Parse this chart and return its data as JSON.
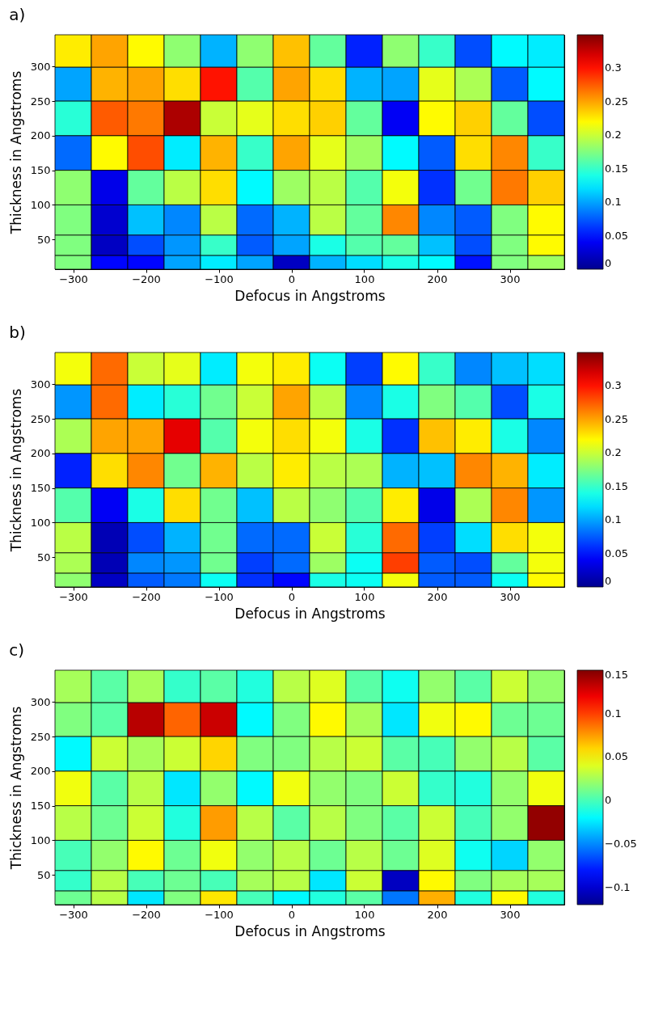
{
  "chart_data": [
    {
      "type": "heatmap",
      "title": "a)",
      "xlabel": "Defocus in Angstroms",
      "ylabel": "Thickness in Angstroms",
      "x": [
        -300,
        -250,
        -200,
        -150,
        -100,
        -50,
        0,
        50,
        100,
        150,
        200,
        250,
        300,
        350
      ],
      "y": [
        323,
        275,
        225,
        175,
        125,
        75,
        37.5,
        16
      ],
      "xlim": [
        -325,
        375
      ],
      "ylim": [
        7,
        346
      ],
      "xticks": [
        {
          "value": -300,
          "label": "−300"
        },
        {
          "value": -200,
          "label": "−200"
        },
        {
          "value": -100,
          "label": "−100"
        },
        0,
        100,
        200,
        300
      ],
      "yticks": [
        50,
        100,
        150,
        200,
        250,
        300
      ],
      "clim": [
        0,
        0.35
      ],
      "cticks": [
        0,
        0.05,
        0.1,
        0.15,
        0.2,
        0.25,
        0.3
      ],
      "cells": [
        [
          0.225,
          0.25,
          0.22,
          0.18,
          0.105,
          0.18,
          0.24,
          0.165,
          0.055,
          0.18,
          0.15,
          0.07,
          0.13,
          0.125
        ],
        [
          0.1,
          0.245,
          0.25,
          0.23,
          0.3,
          0.16,
          0.25,
          0.23,
          0.105,
          0.1,
          0.21,
          0.19,
          0.075,
          0.13
        ],
        [
          0.145,
          0.275,
          0.265,
          0.335,
          0.2,
          0.21,
          0.23,
          0.235,
          0.165,
          0.04,
          0.22,
          0.235,
          0.165,
          0.07
        ],
        [
          0.08,
          0.22,
          0.28,
          0.125,
          0.245,
          0.15,
          0.25,
          0.21,
          0.185,
          0.13,
          0.075,
          0.23,
          0.26,
          0.15
        ],
        [
          0.18,
          0.035,
          0.165,
          0.195,
          0.23,
          0.13,
          0.185,
          0.195,
          0.16,
          0.215,
          0.06,
          0.17,
          0.265,
          0.235
        ],
        [
          0.175,
          0.025,
          0.11,
          0.09,
          0.195,
          0.08,
          0.105,
          0.195,
          0.165,
          0.26,
          0.09,
          0.075,
          0.175,
          0.22
        ],
        [
          0.175,
          0.02,
          0.07,
          0.095,
          0.15,
          0.075,
          0.1,
          0.14,
          0.16,
          0.165,
          0.11,
          0.07,
          0.175,
          0.22
        ],
        [
          0.175,
          0.045,
          0.045,
          0.1,
          0.125,
          0.1,
          0.02,
          0.105,
          0.12,
          0.14,
          0.13,
          0.05,
          0.175,
          0.185
        ]
      ]
    },
    {
      "type": "heatmap",
      "title": "b)",
      "xlabel": "Defocus in Angstroms",
      "ylabel": "Thickness in Angstroms",
      "x": [
        -300,
        -250,
        -200,
        -150,
        -100,
        -50,
        0,
        50,
        100,
        150,
        200,
        250,
        300,
        350
      ],
      "y": [
        323,
        275,
        225,
        175,
        125,
        75,
        37.5,
        16
      ],
      "xlim": [
        -325,
        375
      ],
      "ylim": [
        7,
        346
      ],
      "xticks": [
        {
          "value": -300,
          "label": "−300"
        },
        {
          "value": -200,
          "label": "−200"
        },
        {
          "value": -100,
          "label": "−100"
        },
        0,
        100,
        200,
        300
      ],
      "yticks": [
        50,
        100,
        150,
        200,
        250,
        300
      ],
      "clim": [
        0,
        0.35
      ],
      "cticks": [
        0,
        0.05,
        0.1,
        0.15,
        0.2,
        0.25,
        0.3
      ],
      "cells": [
        [
          0.215,
          0.27,
          0.2,
          0.21,
          0.125,
          0.215,
          0.225,
          0.135,
          0.065,
          0.22,
          0.15,
          0.09,
          0.11,
          0.12
        ],
        [
          0.095,
          0.27,
          0.125,
          0.145,
          0.17,
          0.2,
          0.25,
          0.195,
          0.09,
          0.14,
          0.175,
          0.16,
          0.07,
          0.14
        ],
        [
          0.19,
          0.25,
          0.25,
          0.315,
          0.16,
          0.215,
          0.23,
          0.215,
          0.14,
          0.06,
          0.24,
          0.225,
          0.14,
          0.09
        ],
        [
          0.055,
          0.23,
          0.26,
          0.17,
          0.245,
          0.195,
          0.225,
          0.195,
          0.19,
          0.105,
          0.11,
          0.26,
          0.245,
          0.125
        ],
        [
          0.16,
          0.04,
          0.14,
          0.23,
          0.17,
          0.11,
          0.195,
          0.18,
          0.16,
          0.225,
          0.035,
          0.19,
          0.26,
          0.095
        ],
        [
          0.195,
          0.015,
          0.07,
          0.105,
          0.17,
          0.08,
          0.08,
          0.2,
          0.145,
          0.27,
          0.065,
          0.12,
          0.23,
          0.215
        ],
        [
          0.19,
          0.015,
          0.09,
          0.095,
          0.17,
          0.065,
          0.08,
          0.185,
          0.135,
          0.285,
          0.075,
          0.07,
          0.165,
          0.215
        ],
        [
          0.18,
          0.02,
          0.075,
          0.085,
          0.135,
          0.06,
          0.045,
          0.14,
          0.135,
          0.215,
          0.075,
          0.075,
          0.135,
          0.22
        ]
      ]
    },
    {
      "type": "heatmap",
      "title": "c)",
      "xlabel": "Defocus in Angstroms",
      "ylabel": "Thickness in Angstroms",
      "x": [
        -300,
        -250,
        -200,
        -150,
        -100,
        -50,
        0,
        50,
        100,
        150,
        200,
        250,
        300,
        350
      ],
      "y": [
        323,
        275,
        225,
        175,
        125,
        75,
        37.5,
        16
      ],
      "xlim": [
        -325,
        375
      ],
      "ylim": [
        7,
        346
      ],
      "xticks": [
        {
          "value": -300,
          "label": "−300"
        },
        {
          "value": -200,
          "label": "−200"
        },
        {
          "value": -100,
          "label": "−100"
        },
        0,
        100,
        200,
        300
      ],
      "yticks": [
        50,
        100,
        150,
        200,
        250,
        300
      ],
      "clim": [
        -0.12,
        0.15
      ],
      "cticks": [
        {
          "value": -0.1,
          "label": "−0.1"
        },
        {
          "value": -0.05,
          "label": "−0.05"
        },
        0,
        0.05,
        0.1,
        0.15
      ],
      "cells": [
        [
          0.025,
          0.005,
          0.025,
          -0.005,
          0.005,
          -0.01,
          0.03,
          0.04,
          0.005,
          -0.015,
          0.02,
          0.005,
          0.035,
          0.02
        ],
        [
          0.015,
          0.005,
          0.135,
          0.09,
          0.13,
          -0.02,
          0.015,
          0.05,
          0.025,
          -0.025,
          0.045,
          0.05,
          0.01,
          0.01
        ],
        [
          -0.02,
          0.035,
          0.025,
          0.035,
          0.06,
          0.015,
          0.015,
          0.03,
          0.035,
          0.005,
          0,
          0.02,
          0.03,
          0.005
        ],
        [
          0.045,
          0.005,
          0.03,
          -0.025,
          0.02,
          -0.02,
          0.045,
          0.02,
          0.015,
          0.035,
          -0.005,
          -0.01,
          0.02,
          0.045
        ],
        [
          0.03,
          0.01,
          0.035,
          -0.01,
          0.075,
          0.03,
          0.005,
          0.03,
          0.015,
          0.005,
          0.035,
          0,
          0.02,
          0.145
        ],
        [
          0,
          0.02,
          0.05,
          0.01,
          0.045,
          0.02,
          0.03,
          0.01,
          0.03,
          0.01,
          0.04,
          -0.015,
          -0.03,
          0.02
        ],
        [
          -0.005,
          0.03,
          0,
          0.01,
          0,
          0.025,
          0.03,
          -0.025,
          0.035,
          -0.105,
          0.05,
          0.015,
          0.025,
          0.025
        ],
        [
          0.01,
          0.03,
          -0.025,
          0.015,
          0.055,
          0,
          -0.02,
          -0.01,
          0.005,
          -0.055,
          0.07,
          -0.01,
          0.05,
          -0.01
        ]
      ]
    }
  ]
}
